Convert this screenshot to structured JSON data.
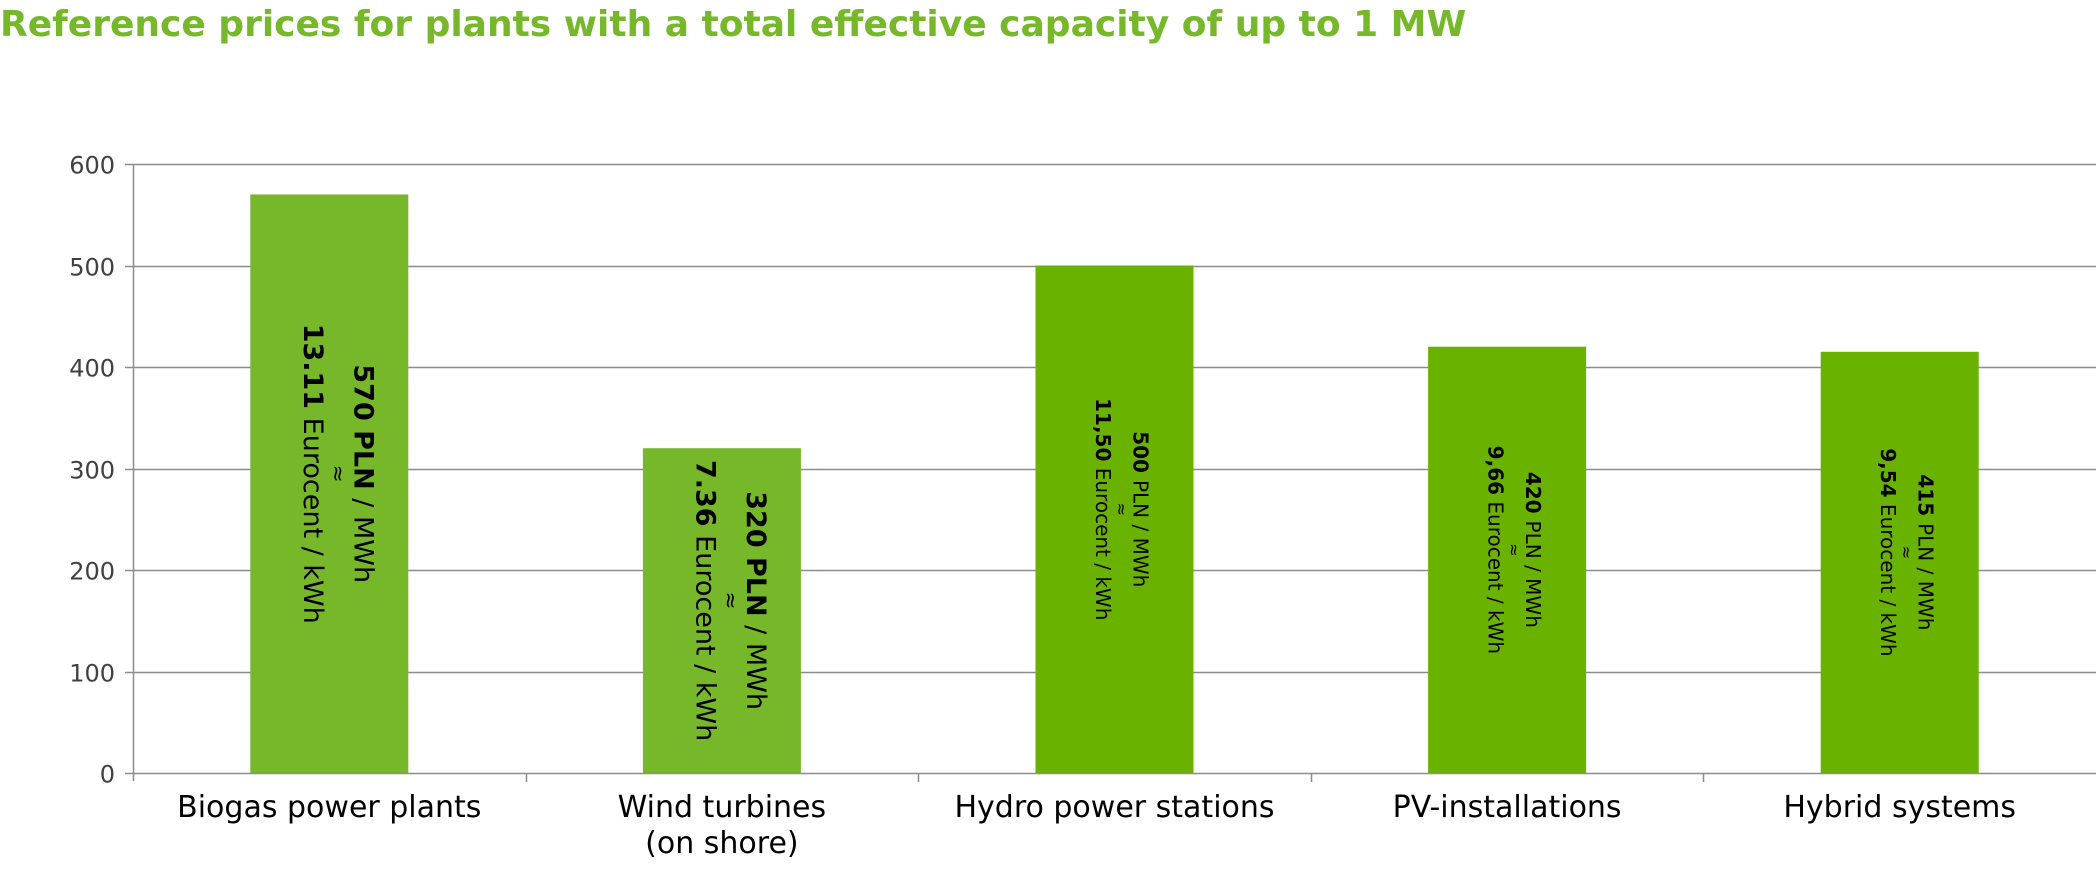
{
  "chart_data": {
    "type": "bar",
    "title": "Reference prices for plants with a total effective capacity of up to 1 MW",
    "categories": [
      [
        "Biogas power plants"
      ],
      [
        "Wind turbines",
        "(on shore)"
      ],
      [
        "Hydro power stations"
      ],
      [
        "PV-installations"
      ],
      [
        "Hybrid systems"
      ]
    ],
    "values": [
      570,
      320,
      500,
      420,
      415
    ],
    "ylim": [
      0,
      600
    ],
    "yticks": [
      0,
      100,
      200,
      300,
      400,
      500,
      600
    ],
    "grid": true,
    "xlabel": "",
    "ylabel": "",
    "data_labels": [
      {
        "value": "570",
        "unit": "PLN",
        "per": " / MWh",
        "approx": "≈",
        "eur": "13.11",
        "eur_unit": " Eurocent / kWh"
      },
      {
        "value": "320",
        "unit": "PLN",
        "per": " / MWh",
        "approx": "≈",
        "eur": "7.36",
        "eur_unit": " Eurocent / kWh"
      },
      {
        "value": "500",
        "unit": "PLN",
        "per": " / MWh",
        "approx": "≈",
        "eur": "11,50",
        "eur_unit": " Eurocent / kWh"
      },
      {
        "value": "420",
        "unit": "PLN",
        "per": " / MWh",
        "approx": "≈",
        "eur": "9,66",
        "eur_unit": " Eurocent / kWh"
      },
      {
        "value": "415",
        "unit": "PLN",
        "per": " / MWh",
        "approx": "≈",
        "eur": "9,54",
        "eur_unit": " Eurocent / kWh"
      }
    ],
    "colors": {
      "bars": [
        "#76b82a",
        "#76b82a",
        "#6ab200",
        "#6ab200",
        "#6ab200"
      ],
      "title": "#76b82a",
      "grid": "#8c8c8c"
    }
  }
}
